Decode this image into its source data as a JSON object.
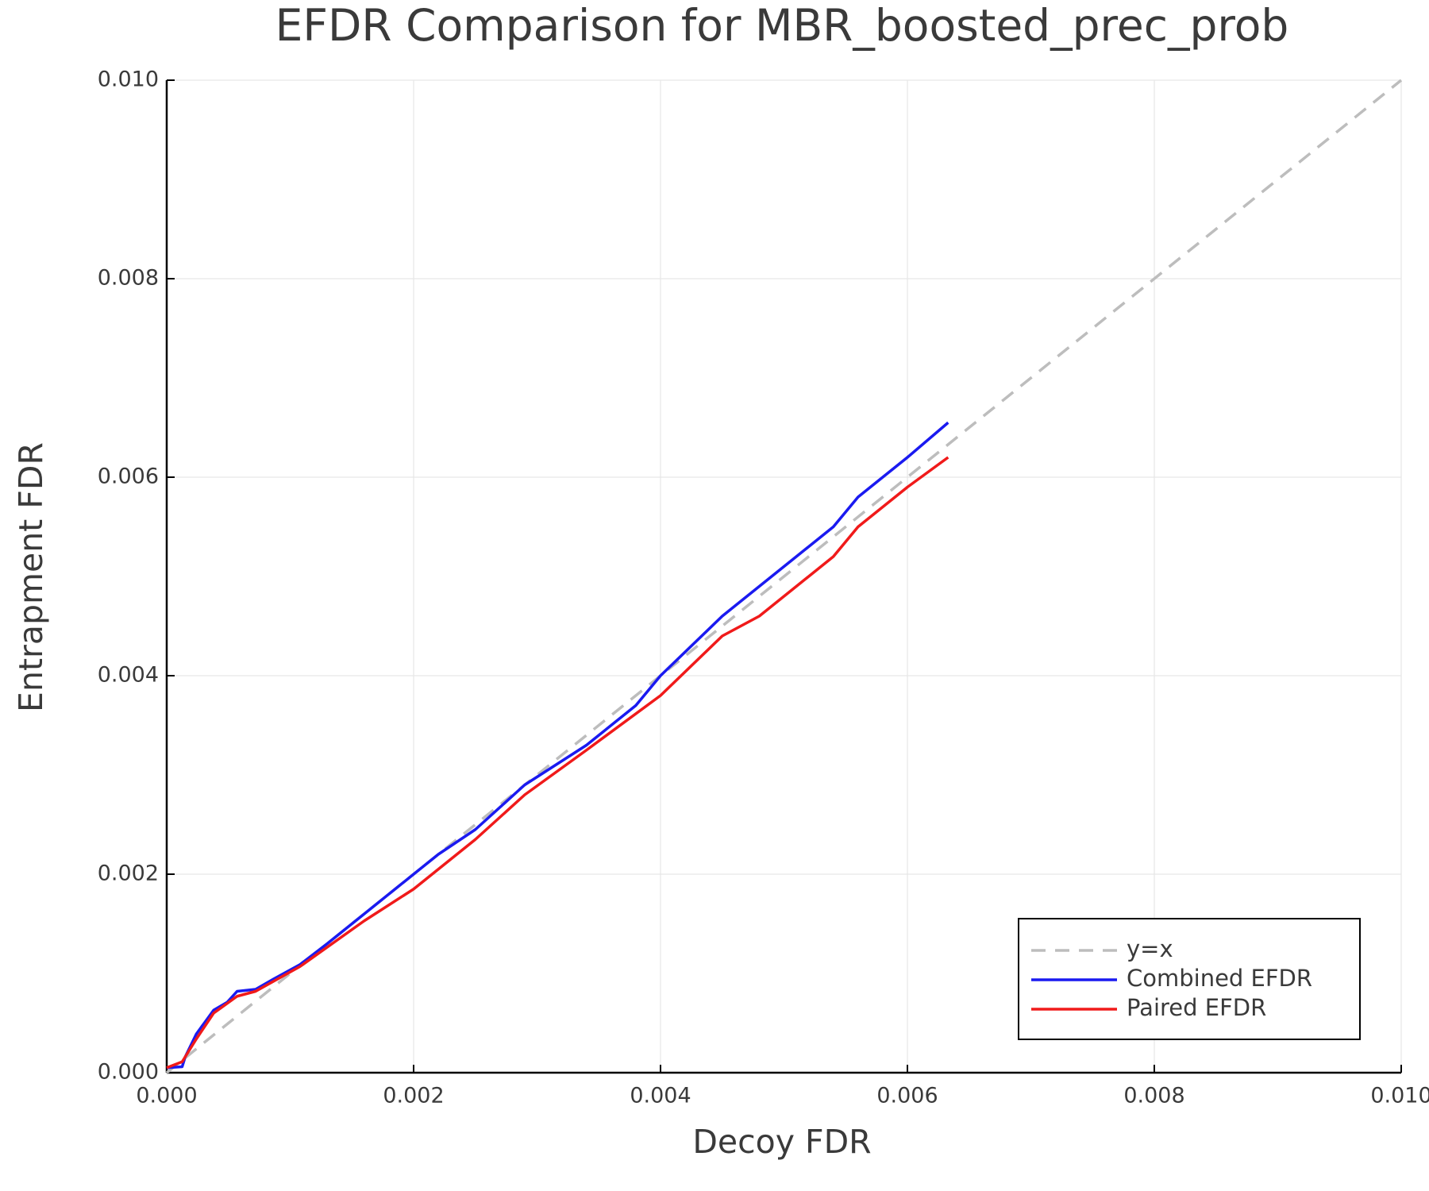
{
  "chart_data": {
    "type": "line",
    "title": "EFDR Comparison for MBR_boosted_prec_prob",
    "x_label": "Decoy FDR",
    "y_label": "Entrapment FDR",
    "xlim": [
      0,
      0.01
    ],
    "ylim": [
      0,
      0.01
    ],
    "xticks": [
      {
        "value": 0,
        "label": "0.000"
      },
      {
        "value": 0.002,
        "label": "0.002"
      },
      {
        "value": 0.004,
        "label": "0.004"
      },
      {
        "value": 0.006,
        "label": "0.006"
      },
      {
        "value": 0.008,
        "label": "0.008"
      },
      {
        "value": 0.01,
        "label": "0.010"
      }
    ],
    "yticks": [
      {
        "value": 0,
        "label": "0.000"
      },
      {
        "value": 0.002,
        "label": "0.002"
      },
      {
        "value": 0.004,
        "label": "0.004"
      },
      {
        "value": 0.006,
        "label": "0.006"
      },
      {
        "value": 0.008,
        "label": "0.008"
      },
      {
        "value": 0.01,
        "label": "0.010"
      }
    ],
    "grid": true,
    "legend": "lower right",
    "series": [
      {
        "name": "y=x",
        "color": "#bdbdbd",
        "dashed": true,
        "x": [
          0,
          0.01
        ],
        "values": [
          0,
          0.01
        ]
      },
      {
        "name": "Combined EFDR",
        "color": "#1a1af0",
        "dashed": false,
        "x": [
          0,
          0.000125,
          0.00015,
          0.00024,
          0.00038,
          0.00049,
          0.00057,
          0.00072,
          0.00086,
          0.00108,
          0.0013,
          0.0016,
          0.002,
          0.0022,
          0.0025,
          0.0029,
          0.0034,
          0.0038,
          0.004,
          0.0045,
          0.0048,
          0.0051,
          0.0054,
          0.0056,
          0.0058,
          0.006,
          0.00633
        ],
        "values": [
          5e-05,
          6e-05,
          0.00016,
          0.00039,
          0.00063,
          0.00071,
          0.00082,
          0.00084,
          0.00094,
          0.00109,
          0.0013,
          0.0016,
          0.002,
          0.0022,
          0.00245,
          0.0029,
          0.0033,
          0.0037,
          0.004,
          0.0046,
          0.0049,
          0.0052,
          0.0055,
          0.0058,
          0.006,
          0.0062,
          0.00655
        ]
      },
      {
        "name": "Paired EFDR",
        "color": "#f01a1a",
        "dashed": false,
        "x": [
          0,
          0.000125,
          0.00024,
          0.00038,
          0.00057,
          0.00072,
          0.00108,
          0.0016,
          0.002,
          0.0025,
          0.0029,
          0.0034,
          0.004,
          0.0045,
          0.0048,
          0.0051,
          0.0054,
          0.0056,
          0.0058,
          0.006,
          0.00633
        ],
        "values": [
          5e-05,
          0.00011,
          0.00034,
          0.0006,
          0.00077,
          0.00082,
          0.00107,
          0.00153,
          0.00185,
          0.00235,
          0.0028,
          0.00325,
          0.0038,
          0.0044,
          0.0046,
          0.0049,
          0.0052,
          0.0055,
          0.0057,
          0.0059,
          0.0062
        ]
      }
    ]
  }
}
